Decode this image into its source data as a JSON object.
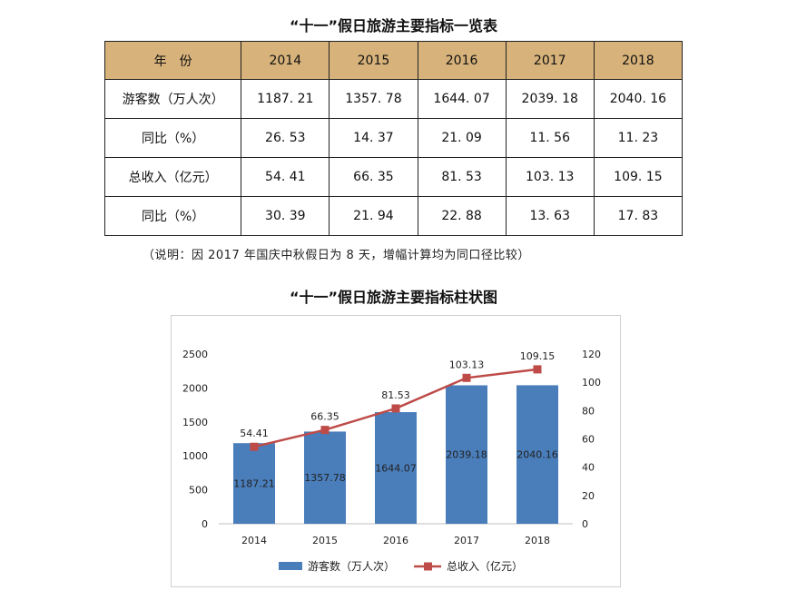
{
  "table": {
    "title": "“十一”假日旅游主要指标一览表",
    "header": [
      "年　份",
      "2014",
      "2015",
      "2016",
      "2017",
      "2018"
    ],
    "rows": [
      [
        "游客数（万人次）",
        "1187. 21",
        "1357. 78",
        "1644. 07",
        "2039. 18",
        "2040. 16"
      ],
      [
        "同比（%）",
        "26. 53",
        "14. 37",
        "21. 09",
        "11. 56",
        "11. 23"
      ],
      [
        "总收入（亿元）",
        "54. 41",
        "66. 35",
        "81. 53",
        "103. 13",
        "109. 15"
      ],
      [
        "同比（%）",
        "30. 39",
        "21. 94",
        "22. 88",
        "13. 63",
        "17. 83"
      ]
    ],
    "note": "（说明：因 2017 年国庆中秋假日为 8 天，增幅计算均为同口径比较）"
  },
  "chart_title": "“十一”假日旅游主要指标柱状图",
  "chart_data": {
    "type": "bar",
    "categories": [
      "2014",
      "2015",
      "2016",
      "2017",
      "2018"
    ],
    "series": [
      {
        "name": "游客数（万人次）",
        "type": "bar",
        "axis": "left",
        "values": [
          1187.21,
          1357.78,
          1644.07,
          2039.18,
          2040.16
        ],
        "labels": [
          "1187.21",
          "1357.78",
          "1644.07",
          "2039.18",
          "2040.16"
        ],
        "color": "#4a7ebb"
      },
      {
        "name": "总收入（亿元）",
        "type": "line",
        "axis": "right",
        "values": [
          54.41,
          66.35,
          81.53,
          103.13,
          109.15
        ],
        "labels": [
          "54.41",
          "66.35",
          "81.53",
          "103.13",
          "109.15"
        ],
        "color": "#be4b48"
      }
    ],
    "y_left": {
      "range": [
        0,
        2500
      ],
      "ticks": [
        "0",
        "500",
        "1000",
        "1500",
        "2000",
        "2500"
      ]
    },
    "y_right": {
      "range": [
        0,
        120
      ],
      "ticks": [
        "0",
        "20",
        "40",
        "60",
        "80",
        "100",
        "120"
      ]
    },
    "grid": false,
    "legend": "bottom"
  }
}
